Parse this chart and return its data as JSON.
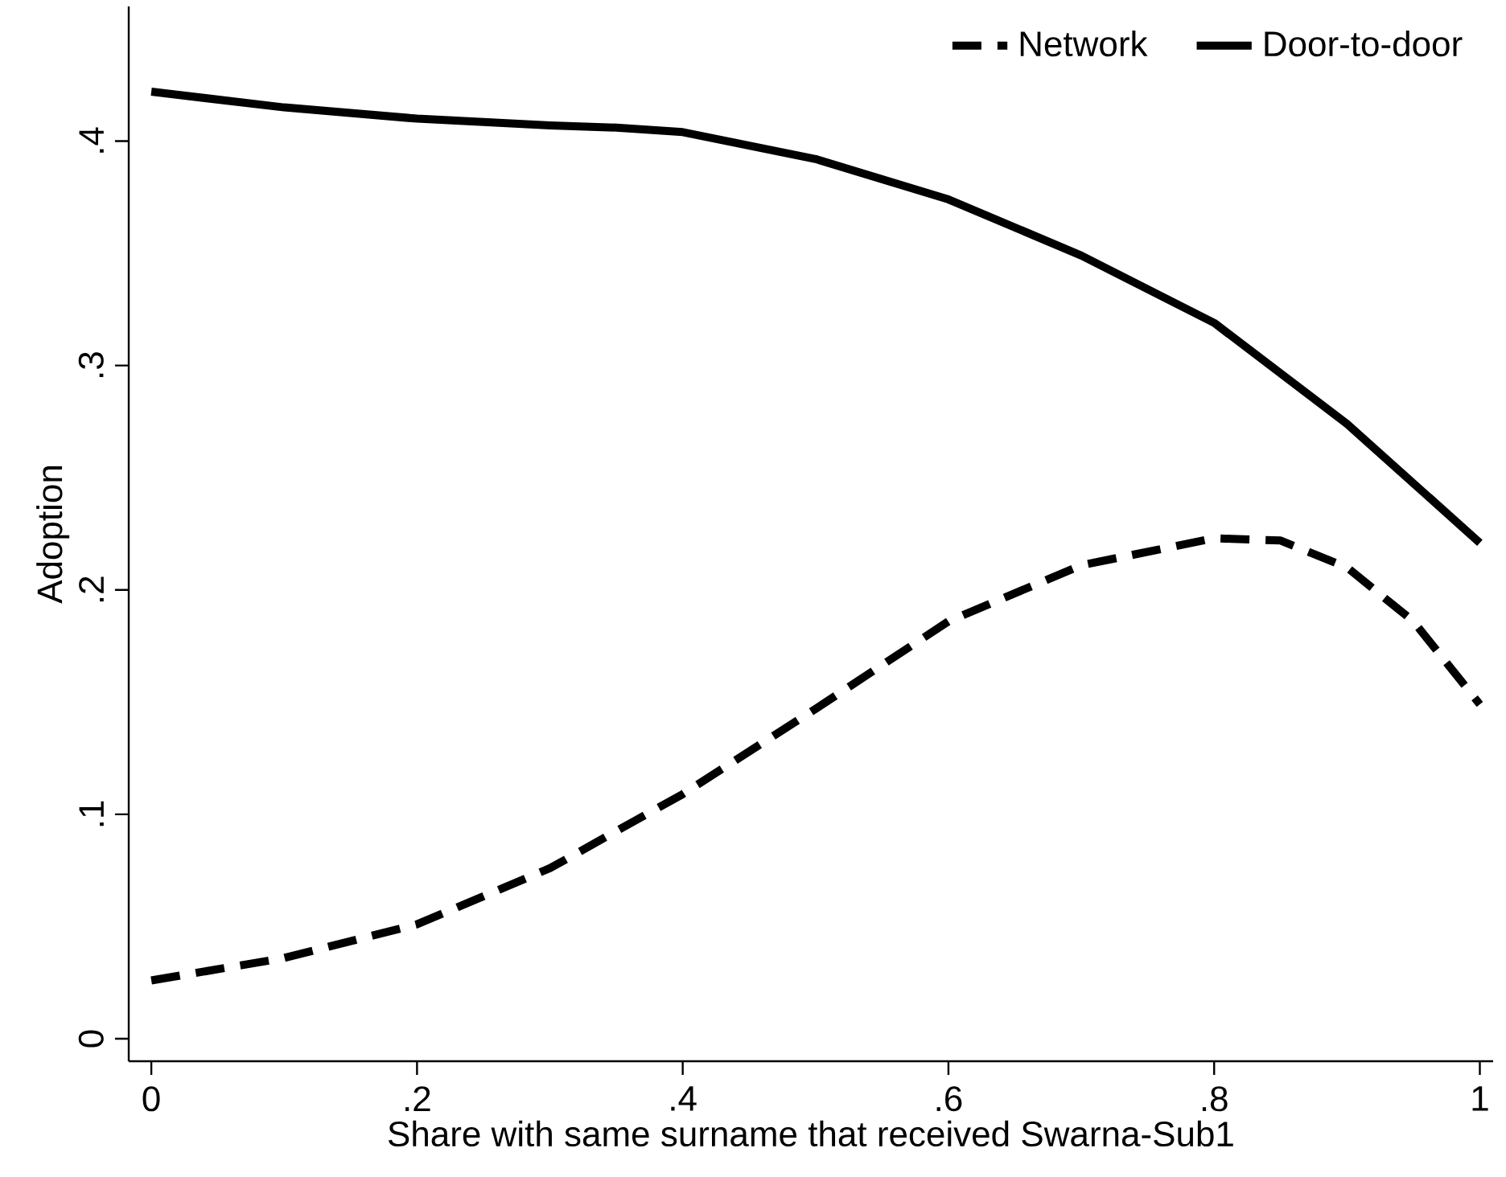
{
  "chart_data": {
    "type": "line",
    "xlabel": "Share with same surname that received Swarna-Sub1",
    "ylabel": "Adoption",
    "xlim": [
      -0.017,
      1.01
    ],
    "ylim": [
      -0.01,
      0.46
    ],
    "xticks": [
      0,
      {
        "value": 0.2,
        "label": ".2"
      },
      {
        "value": 0.4,
        "label": ".4"
      },
      {
        "value": 0.6,
        "label": ".6"
      },
      {
        "value": 0.8,
        "label": ".8"
      },
      1
    ],
    "yticks": [
      0,
      {
        "value": 0.1,
        "label": ".1"
      },
      {
        "value": 0.2,
        "label": ".2"
      },
      {
        "value": 0.3,
        "label": ".3"
      },
      {
        "value": 0.4,
        "label": ".4"
      }
    ],
    "grid": false,
    "legend": "top right",
    "marker": "none",
    "series": [
      {
        "name": "Network",
        "color": "#000000",
        "line_style": "dashed",
        "x": [
          0,
          0.1,
          0.2,
          0.3,
          0.4,
          0.5,
          0.6,
          0.7,
          0.8,
          0.85,
          0.9,
          0.95,
          1
        ],
        "values": [
          0.026,
          0.036,
          0.051,
          0.076,
          0.109,
          0.147,
          0.186,
          0.211,
          0.223,
          0.222,
          0.21,
          0.186,
          0.149
        ]
      },
      {
        "name": "Door-to-door",
        "color": "#000000",
        "line_style": "solid",
        "x": [
          0,
          0.1,
          0.2,
          0.3,
          0.35,
          0.4,
          0.5,
          0.6,
          0.7,
          0.8,
          0.9,
          1
        ],
        "values": [
          0.422,
          0.415,
          0.41,
          0.407,
          0.406,
          0.404,
          0.392,
          0.374,
          0.349,
          0.319,
          0.274,
          0.221
        ]
      }
    ]
  }
}
